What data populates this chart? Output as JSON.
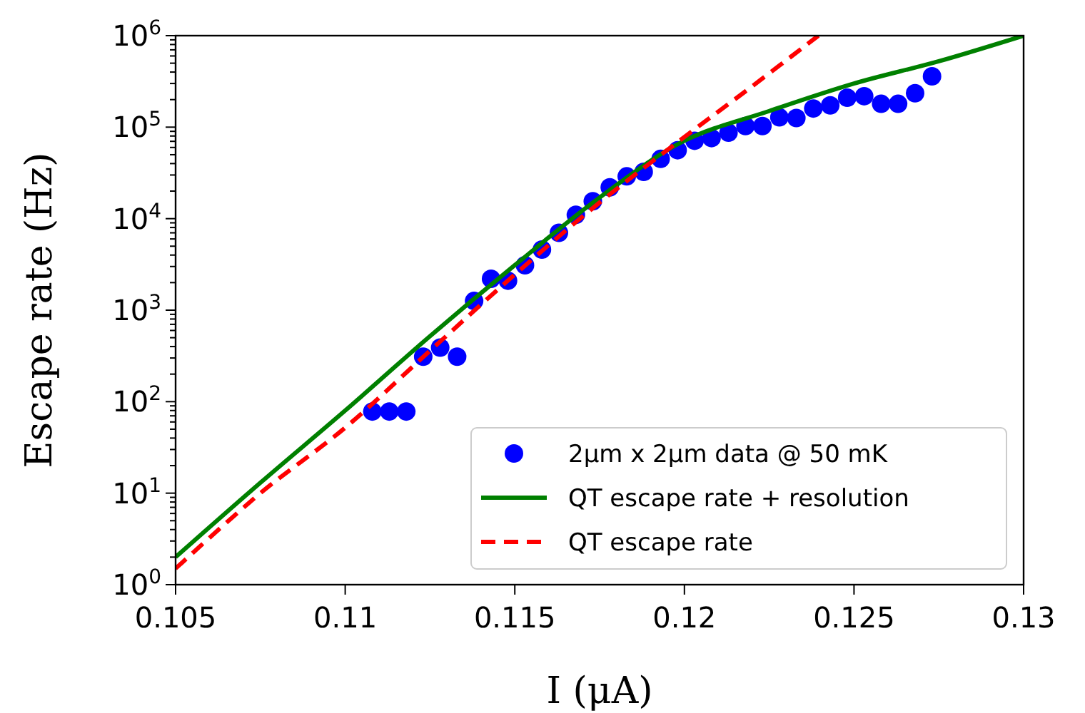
{
  "chart_data": {
    "type": "scatter",
    "xlabel": "I (μA)",
    "ylabel": "Escape rate  (Hz)",
    "log": "y",
    "xlim": [
      0.105,
      0.13
    ],
    "xticks": [
      0.105,
      0.11,
      0.115,
      0.12,
      0.125,
      0.13
    ],
    "ylim": [
      1,
      1000000
    ],
    "yticks": [
      {
        "value": 1,
        "label": "10$^{0}$"
      },
      {
        "value": 2,
        "label": null
      },
      {
        "value": 3,
        "label": null
      },
      {
        "value": 4,
        "label": null
      },
      {
        "value": 5,
        "label": null
      },
      {
        "value": 6,
        "label": null
      },
      {
        "value": 7,
        "label": null
      },
      {
        "value": 8,
        "label": null
      },
      {
        "value": 9,
        "label": null
      },
      {
        "value": 10,
        "label": "10$^{1}$"
      },
      {
        "value": 20,
        "label": null
      },
      {
        "value": 30,
        "label": null
      },
      {
        "value": 40,
        "label": null
      },
      {
        "value": 50,
        "label": null
      },
      {
        "value": 60,
        "label": null
      },
      {
        "value": 70,
        "label": null
      },
      {
        "value": 80,
        "label": null
      },
      {
        "value": 90,
        "label": null
      },
      {
        "value": 100,
        "label": "10$^{2}$"
      },
      {
        "value": 200,
        "label": null
      },
      {
        "value": 300,
        "label": null
      },
      {
        "value": 400,
        "label": null
      },
      {
        "value": 500,
        "label": null
      },
      {
        "value": 600,
        "label": null
      },
      {
        "value": 700,
        "label": null
      },
      {
        "value": 800,
        "label": null
      },
      {
        "value": 900,
        "label": null
      },
      {
        "value": 1000,
        "label": "10$^{3}$"
      },
      {
        "value": 2000,
        "label": null
      },
      {
        "value": 3000,
        "label": null
      },
      {
        "value": 4000,
        "label": null
      },
      {
        "value": 5000,
        "label": null
      },
      {
        "value": 6000,
        "label": null
      },
      {
        "value": 7000,
        "label": null
      },
      {
        "value": 8000,
        "label": null
      },
      {
        "value": 9000,
        "label": null
      },
      {
        "value": 10000,
        "label": "10$^{4}$"
      },
      {
        "value": 20000,
        "label": null
      },
      {
        "value": 30000,
        "label": null
      },
      {
        "value": 40000,
        "label": null
      },
      {
        "value": 50000,
        "label": null
      },
      {
        "value": 60000,
        "label": null
      },
      {
        "value": 70000,
        "label": null
      },
      {
        "value": 80000,
        "label": null
      },
      {
        "value": 90000,
        "label": null
      },
      {
        "value": 100000,
        "label": "10$^{5}$"
      },
      {
        "value": 200000,
        "label": null
      },
      {
        "value": 300000,
        "label": null
      },
      {
        "value": 400000,
        "label": null
      },
      {
        "value": 500000,
        "label": null
      },
      {
        "value": 600000,
        "label": null
      },
      {
        "value": 700000,
        "label": null
      },
      {
        "value": 800000,
        "label": null
      },
      {
        "value": 900000,
        "label": null
      },
      {
        "value": 1000000,
        "label": "10$^{6}$"
      }
    ],
    "grid": false,
    "legend": "bottom right",
    "series": [
      {
        "name": "2µm x 2µm data @ 50 mK",
        "color": "#0000ff",
        "x": [
          0.1108,
          0.1113,
          0.1118,
          0.1123,
          0.1128,
          0.1133,
          0.1138,
          0.1143,
          0.1148,
          0.1153,
          0.1158,
          0.1163,
          0.1168,
          0.1173,
          0.1178,
          0.1183,
          0.1188,
          0.1193,
          0.1198,
          0.1203,
          0.1208,
          0.1213,
          0.1218,
          0.1223,
          0.1228,
          0.1233,
          0.1238,
          0.1243,
          0.1248,
          0.1253,
          0.1258,
          0.1263,
          0.1268,
          0.1273
        ],
        "values": [
          78,
          78,
          78,
          310,
          390,
          310,
          1260,
          2200,
          2100,
          3100,
          4600,
          7000,
          11000,
          15500,
          22000,
          29000,
          32500,
          45000,
          56000,
          71000,
          76000,
          87000,
          103000,
          103000,
          128000,
          126000,
          160000,
          173000,
          210000,
          218000,
          180000,
          180000,
          235000,
          360000
        ]
      },
      {
        "name": "QT escape rate + resolution",
        "type": "line",
        "line_style": "solid",
        "color": "#008000",
        "x": [
          0.105,
          0.1075,
          0.11,
          0.1125,
          0.115,
          0.1175,
          0.12,
          0.1225,
          0.125,
          0.1275,
          0.13
        ],
        "values": [
          2,
          13,
          80,
          520,
          3100,
          17000,
          71000,
          150000,
          300000,
          525000,
          1000000
        ]
      },
      {
        "name": "QT escape rate",
        "type": "line",
        "line_style": "dashed",
        "color": "#ff0000",
        "x": [
          0.105,
          0.1075,
          0.11,
          0.1125,
          0.115,
          0.1175,
          0.12,
          0.122,
          0.12395
        ],
        "values": [
          1.5,
          10,
          52,
          360,
          2450,
          15000,
          78000,
          280000,
          1000000
        ]
      }
    ]
  }
}
